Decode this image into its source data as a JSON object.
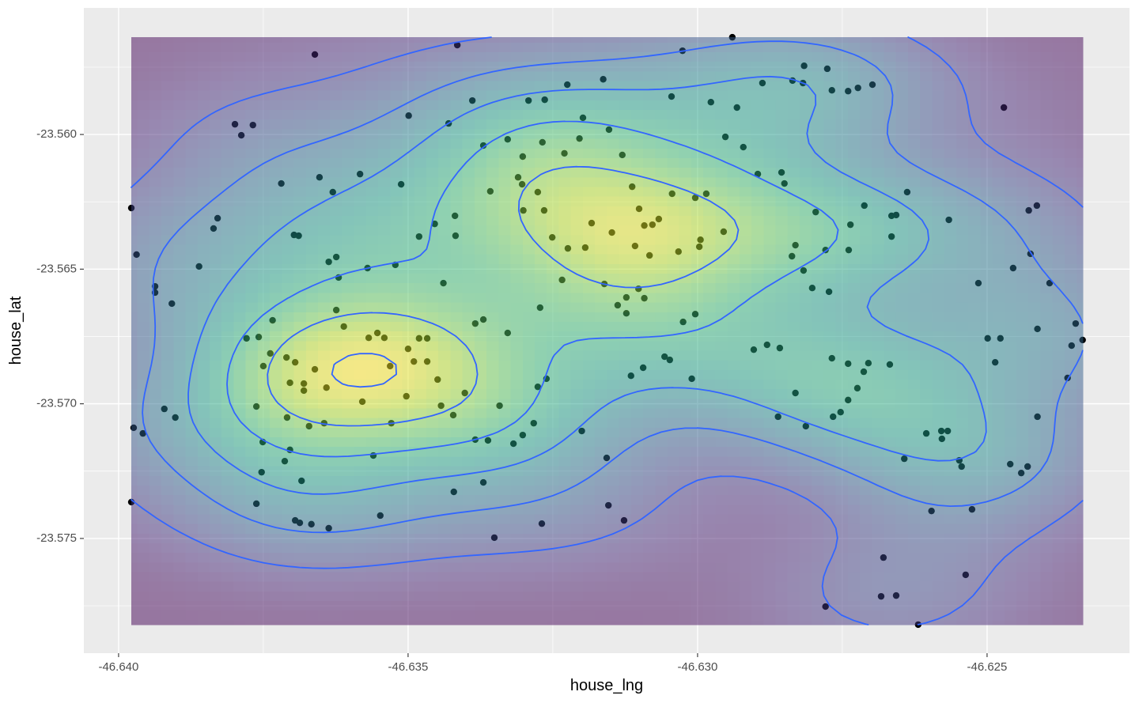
{
  "chart_data": {
    "type": "scatter",
    "x_label": "house_lng",
    "y_label": "house_lat",
    "color": "#000000",
    "density_palette": "viridis",
    "density_opacity": 0.5,
    "contour_color": "#3366FF",
    "grid": true,
    "xlim": [
      -46.6406,
      -46.62254
    ],
    "ylim": [
      -23.57926,
      -23.5553
    ],
    "xticks": [
      {
        "value": -46.64,
        "label": "-46.640"
      },
      -46.635,
      {
        "value": -46.63,
        "label": "-46.630"
      },
      -46.625
    ],
    "yticks": [
      {
        "value": -23.56,
        "label": "-23.560"
      },
      -23.565,
      {
        "value": -23.57,
        "label": "-23.570"
      },
      -23.575
    ],
    "x": [
      -46.63661,
      -46.63415,
      -46.6294,
      -46.63026,
      -46.63799,
      -46.63788,
      -46.63768,
      -46.63978,
      -46.63829,
      -46.63836,
      -46.63719,
      -46.63653,
      -46.6363,
      -46.63583,
      -46.63512,
      -46.63499,
      -46.6343,
      -46.63389,
      -46.6337,
      -46.63328,
      -46.63292,
      -46.63264,
      -46.63225,
      -46.63163,
      -46.63198,
      -46.63153,
      -46.63045,
      -46.62977,
      -46.62932,
      -46.62888,
      -46.62836,
      -46.62816,
      -46.62776,
      -46.62818,
      -46.62768,
      -46.6274,
      -46.62723,
      -46.62698,
      -46.62921,
      -46.62952,
      -46.62896,
      -46.62855,
      -46.6285,
      -46.62638,
      -46.62712,
      -46.62665,
      -46.62657,
      -46.62566,
      -46.62665,
      -46.62736,
      -46.62796,
      -46.62831,
      -46.62837,
      -46.62817,
      -46.62779,
      -46.62739,
      -46.62802,
      -46.62773,
      -46.62955,
      -46.62995,
      -46.63033,
      -46.62997,
      -46.62985,
      -46.63004,
      -46.63044,
      -46.63067,
      -46.63092,
      -46.63078,
      -46.63101,
      -46.63113,
      -46.63148,
      -46.63108,
      -46.63083,
      -46.63183,
      -46.63194,
      -46.63224,
      -46.63251,
      -46.63265,
      -46.63301,
      -46.63276,
      -46.63303,
      -46.63358,
      -46.6331,
      -46.63302,
      -46.63268,
      -46.6323,
      -46.6313,
      -46.63204,
      -46.63419,
      -46.63454,
      -46.63418,
      -46.63481,
      -46.63522,
      -46.6357,
      -46.6362,
      -46.63637,
      -46.63624,
      -46.63697,
      -46.63689,
      -46.63861,
      -46.63969,
      -46.63937,
      -46.63937,
      -46.63908,
      -46.63974,
      -46.63958,
      -46.63921,
      -46.63902,
      -46.63978,
      -46.63779,
      -46.63758,
      -46.63734,
      -46.6375,
      -46.6371,
      -46.63695,
      -46.63738,
      -46.63704,
      -46.6368,
      -46.6368,
      -46.63641,
      -46.63661,
      -46.63624,
      -46.63611,
      -46.63568,
      -46.63553,
      -46.63541,
      -46.63531,
      -46.635,
      -46.6349,
      -46.63481,
      -46.63467,
      -46.63467,
      -46.63579,
      -46.63503,
      -46.63529,
      -46.63449,
      -46.63443,
      -46.63422,
      -46.63402,
      -46.63645,
      -46.63671,
      -46.63709,
      -46.63762,
      -46.63751,
      -46.63704,
      -46.63713,
      -46.63753,
      -46.63684,
      -46.63762,
      -46.63695,
      -46.63687,
      -46.63667,
      -46.63637,
      -46.6356,
      -46.63548,
      -46.63421,
      -46.63351,
      -46.6337,
      -46.63384,
      -46.63362,
      -46.63318,
      -46.63302,
      -46.63283,
      -46.63342,
      -46.63276,
      -46.63261,
      -46.63269,
      -46.632,
      -46.63157,
      -46.63154,
      -46.63127,
      -46.63115,
      -46.63094,
      -46.63057,
      -46.63048,
      -46.6301,
      -46.63025,
      -46.63004,
      -46.63123,
      -46.63138,
      -46.63123,
      -46.63102,
      -46.63092,
      -46.63161,
      -46.63234,
      -46.63272,
      -46.63328,
      -46.6337,
      -46.63384,
      -46.63439,
      -46.62903,
      -46.6288,
      -46.62858,
      -46.62768,
      -46.6274,
      -46.62705,
      -46.62668,
      -46.62713,
      -46.62724,
      -46.6274,
      -46.62831,
      -46.62753,
      -46.62766,
      -46.62861,
      -46.62813,
      -46.62643,
      -46.62605,
      -46.62579,
      -46.62568,
      -46.62578,
      -46.62548,
      -46.62544,
      -46.62596,
      -46.62526,
      -46.62679,
      -46.62683,
      -46.62657,
      -46.62779,
      -46.62619,
      -46.62537,
      -46.6246,
      -46.62441,
      -46.6243,
      -46.62413,
      -46.62361,
      -46.62354,
      -46.62335,
      -46.62347,
      -46.62413,
      -46.62499,
      -46.62477,
      -46.62486,
      -46.62515,
      -46.62455,
      -46.62425,
      -46.62392,
      -46.62428,
      -46.62414,
      -46.62471
    ],
    "y": [
      -23.55703,
      -23.55668,
      -23.55639,
      -23.55689,
      -23.55962,
      -23.56003,
      -23.55965,
      -23.56273,
      -23.56311,
      -23.56349,
      -23.56182,
      -23.56159,
      -23.56214,
      -23.56147,
      -23.56185,
      -23.5593,
      -23.55959,
      -23.55874,
      -23.56041,
      -23.56018,
      -23.55874,
      -23.55871,
      -23.55815,
      -23.55795,
      -23.55938,
      -23.55982,
      -23.55859,
      -23.5588,
      -23.559,
      -23.55809,
      -23.558,
      -23.55745,
      -23.55756,
      -23.55809,
      -23.55836,
      -23.55839,
      -23.55827,
      -23.55815,
      -23.56047,
      -23.56009,
      -23.56147,
      -23.56141,
      -23.56182,
      -23.56214,
      -23.56264,
      -23.56302,
      -23.56299,
      -23.56317,
      -23.56379,
      -23.56335,
      -23.56288,
      -23.56411,
      -23.56452,
      -23.56505,
      -23.56429,
      -23.56429,
      -23.5657,
      -23.56584,
      -23.56361,
      -23.56391,
      -23.56435,
      -23.56417,
      -23.5622,
      -23.56235,
      -23.5622,
      -23.56314,
      -23.56338,
      -23.56335,
      -23.56276,
      -23.56194,
      -23.56364,
      -23.56414,
      -23.56449,
      -23.56329,
      -23.5642,
      -23.56423,
      -23.56382,
      -23.56282,
      -23.56282,
      -23.56214,
      -23.56185,
      -23.56211,
      -23.56159,
      -23.56082,
      -23.56029,
      -23.5607,
      -23.56076,
      -23.56015,
      -23.56302,
      -23.56332,
      -23.56376,
      -23.56379,
      -23.56484,
      -23.56496,
      -23.56531,
      -23.56473,
      -23.56455,
      -23.56373,
      -23.56376,
      -23.5649,
      -23.56446,
      -23.56564,
      -23.56587,
      -23.56628,
      -23.57089,
      -23.5711,
      -23.57019,
      -23.57051,
      -23.57365,
      -23.56757,
      -23.56752,
      -23.5669,
      -23.5686,
      -23.56828,
      -23.56846,
      -23.56813,
      -23.56922,
      -23.56925,
      -23.56951,
      -23.5694,
      -23.56872,
      -23.56652,
      -23.56713,
      -23.56755,
      -23.56737,
      -23.56755,
      -23.5686,
      -23.56796,
      -23.56843,
      -23.56757,
      -23.56757,
      -23.56843,
      -23.56992,
      -23.56972,
      -23.57072,
      -23.5691,
      -23.57007,
      -23.57042,
      -23.5696,
      -23.57072,
      -23.57083,
      -23.57051,
      -23.5701,
      -23.57142,
      -23.57171,
      -23.57213,
      -23.57254,
      -23.57286,
      -23.57371,
      -23.57433,
      -23.57442,
      -23.57447,
      -23.57462,
      -23.57192,
      -23.57415,
      -23.57327,
      -23.57497,
      -23.57292,
      -23.57133,
      -23.57136,
      -23.57148,
      -23.57116,
      -23.57072,
      -23.57007,
      -23.56937,
      -23.56907,
      -23.57445,
      -23.57101,
      -23.57201,
      -23.57377,
      -23.57433,
      -23.56896,
      -23.56866,
      -23.56825,
      -23.56837,
      -23.56907,
      -23.56696,
      -23.56667,
      -23.56664,
      -23.56634,
      -23.56605,
      -23.56573,
      -23.56608,
      -23.56555,
      -23.5654,
      -23.56643,
      -23.56737,
      -23.56687,
      -23.56702,
      -23.56552,
      -23.56799,
      -23.56781,
      -23.56793,
      -23.56831,
      -23.56851,
      -23.56849,
      -23.56854,
      -23.56881,
      -23.56942,
      -23.56986,
      -23.5696,
      -23.57031,
      -23.57048,
      -23.57048,
      -23.57083,
      -23.57204,
      -23.5711,
      -23.57101,
      -23.57101,
      -23.5713,
      -23.5721,
      -23.57233,
      -23.57398,
      -23.57392,
      -23.57571,
      -23.57715,
      -23.57712,
      -23.57753,
      -23.5782,
      -23.57635,
      -23.57224,
      -23.57257,
      -23.57233,
      -23.57048,
      -23.56904,
      -23.56784,
      -23.56763,
      -23.56702,
      -23.56722,
      -23.56757,
      -23.56757,
      -23.56846,
      -23.56552,
      -23.56496,
      -23.56443,
      -23.56552,
      -23.56282,
      -23.56264,
      -23.559
    ]
  }
}
